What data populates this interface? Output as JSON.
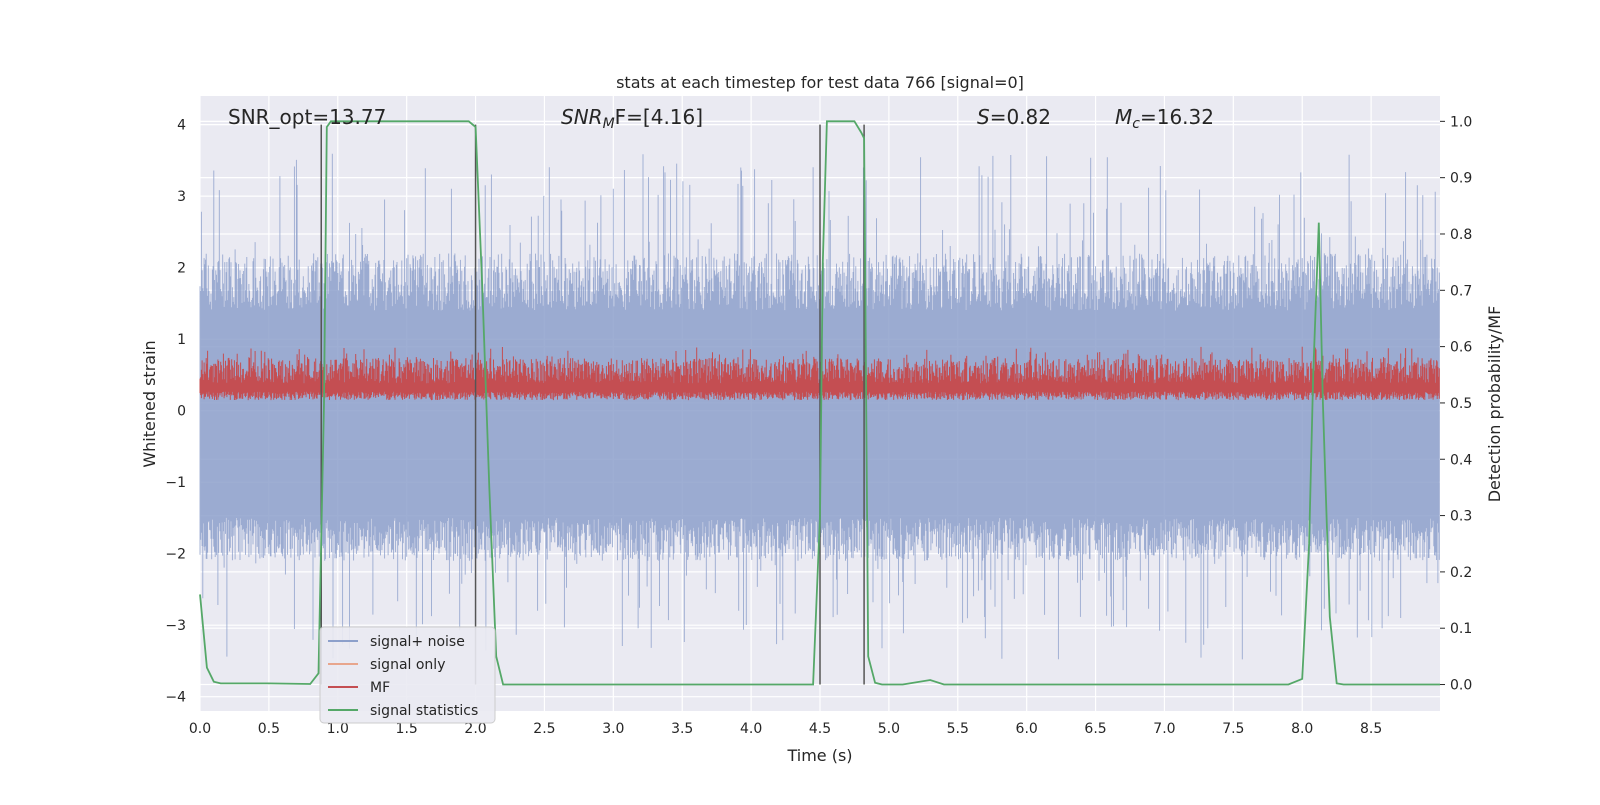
{
  "chart_data": {
    "type": "line",
    "title": "stats at each timestep for test data 766 [signal=0]",
    "xlabel": "Time (s)",
    "ylabel": "Whitened strain",
    "y2label": "Detection probability/MF",
    "xlim": [
      0.0,
      9.0
    ],
    "ylim": [
      -4.2,
      4.4
    ],
    "y2lim": [
      -0.047,
      1.045
    ],
    "xticks": [
      "0.0",
      "0.5",
      "1.0",
      "1.5",
      "2.0",
      "2.5",
      "3.0",
      "3.5",
      "4.0",
      "4.5",
      "5.0",
      "5.5",
      "6.0",
      "6.5",
      "7.0",
      "7.5",
      "8.0",
      "8.5"
    ],
    "xtick_values": [
      0.0,
      0.5,
      1.0,
      1.5,
      2.0,
      2.5,
      3.0,
      3.5,
      4.0,
      4.5,
      5.0,
      5.5,
      6.0,
      6.5,
      7.0,
      7.5,
      8.0,
      8.5
    ],
    "yticks": [
      "4",
      "3",
      "2",
      "1",
      "0",
      "−1",
      "−2",
      "−3",
      "−4"
    ],
    "ytick_values": [
      4,
      3,
      2,
      1,
      0,
      -1,
      -2,
      -3,
      -4
    ],
    "y2ticks": [
      "1.0",
      "0.9",
      "0.8",
      "0.7",
      "0.6",
      "0.5",
      "0.4",
      "0.3",
      "0.2",
      "0.1",
      "0.0"
    ],
    "y2tick_values": [
      1.0,
      0.9,
      0.8,
      0.7,
      0.6,
      0.5,
      0.4,
      0.3,
      0.2,
      0.1,
      0.0
    ],
    "annotations": {
      "snr_opt": "SNR_opt=13.77",
      "snr_mf_label": "SNR",
      "snr_mf_sub": "M",
      "snr_mf_value": "F=[4.16]",
      "s_label": "S",
      "s_value": "=0.82",
      "mc_label": "M",
      "mc_sub": "c",
      "mc_value": "=16.32"
    },
    "vertical_lines_x": [
      0.88,
      2.0,
      4.5,
      4.82
    ],
    "series": [
      {
        "name": "signal+ noise",
        "color": "#8da0cb",
        "axis": "left",
        "description": "noise band approx ±2 with spikes to ±3.5"
      },
      {
        "name": "signal only",
        "color": "#e8a68d",
        "axis": "left",
        "values": []
      },
      {
        "name": "MF",
        "color": "#c44e52",
        "axis": "right",
        "range": [
          0.52,
          0.6
        ]
      },
      {
        "name": "signal statistics",
        "color": "#55a868",
        "axis": "right",
        "x": [
          0.0,
          0.05,
          0.1,
          0.15,
          0.2,
          0.3,
          0.5,
          0.8,
          0.86,
          0.9,
          0.92,
          0.95,
          1.0,
          1.5,
          1.95,
          2.0,
          2.05,
          2.1,
          2.15,
          2.2,
          2.5,
          3.0,
          3.5,
          4.0,
          4.45,
          4.5,
          4.52,
          4.55,
          4.58,
          4.6,
          4.75,
          4.8,
          4.82,
          4.85,
          4.9,
          4.95,
          5.1,
          5.3,
          5.4,
          6.0,
          7.0,
          7.9,
          8.0,
          8.05,
          8.08,
          8.12,
          8.15,
          8.2,
          8.25,
          8.3,
          8.5,
          9.0
        ],
        "values": [
          0.16,
          0.03,
          0.005,
          0.002,
          0.002,
          0.002,
          0.002,
          0.001,
          0.02,
          0.5,
          0.99,
          1.0,
          1.0,
          1.0,
          1.0,
          0.99,
          0.7,
          0.35,
          0.05,
          0.0,
          0.0,
          0.0,
          0.0,
          0.0,
          0.0,
          0.3,
          0.75,
          1.0,
          1.0,
          1.0,
          1.0,
          0.98,
          0.97,
          0.05,
          0.003,
          0.0,
          0.0,
          0.008,
          0.0,
          0.0,
          0.0,
          0.0,
          0.01,
          0.25,
          0.55,
          0.82,
          0.5,
          0.12,
          0.002,
          0.0,
          0.0,
          0.0
        ]
      }
    ]
  }
}
